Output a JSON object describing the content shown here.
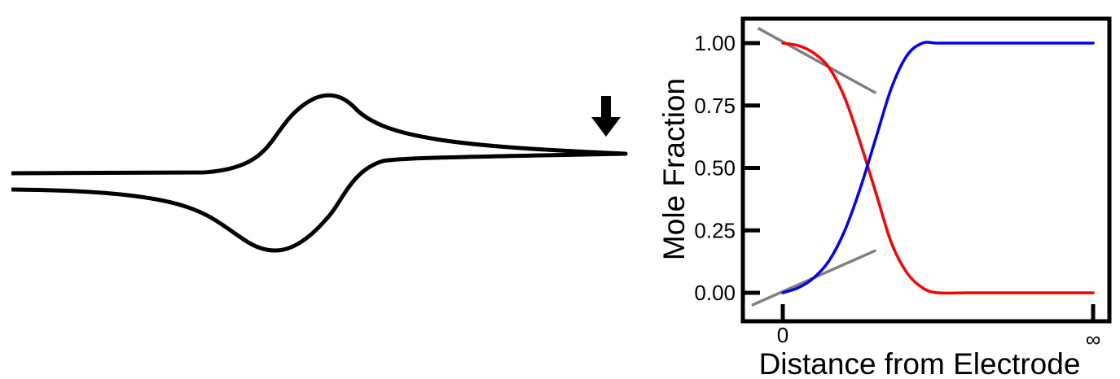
{
  "chart_data": [
    {
      "type": "line",
      "title": "",
      "description_role": "cyclic-voltammogram",
      "series": [
        {
          "values_shape": "hysteresis loop with forward peak and reverse trough",
          "color": "#000000"
        }
      ],
      "marker": {
        "icon": "down-arrow-icon",
        "color": "#000000"
      }
    },
    {
      "type": "line",
      "title": "",
      "xlabel": "Distance from Electrode",
      "ylabel": "Mole Fraction",
      "ylim": [
        -0.12,
        1.1
      ],
      "y_ticks": [
        "0.00",
        "0.25",
        "0.50",
        "0.75",
        "1.00"
      ],
      "x_ticks": [
        "0",
        "∞"
      ],
      "grid": false,
      "legend": "none",
      "series": [
        {
          "color": "#ff0000",
          "x": [
            0,
            0.05,
            0.1,
            0.15,
            0.2,
            0.25,
            0.3,
            0.35,
            0.4,
            0.45,
            0.5,
            0.6,
            0.8,
            1.0
          ],
          "values": [
            1.0,
            0.99,
            0.96,
            0.9,
            0.78,
            0.6,
            0.4,
            0.2,
            0.08,
            0.02,
            0.0,
            0.0,
            0.0,
            0.0
          ]
        },
        {
          "color": "#0000ff",
          "x": [
            0,
            0.05,
            0.1,
            0.15,
            0.2,
            0.25,
            0.3,
            0.35,
            0.4,
            0.45,
            0.5,
            0.6,
            0.8,
            1.0
          ],
          "values": [
            0.0,
            0.02,
            0.06,
            0.13,
            0.25,
            0.42,
            0.62,
            0.82,
            0.95,
            1.0,
            1.0,
            1.0,
            1.0,
            1.0
          ]
        }
      ],
      "tangent_lines": [
        {
          "color": "#808080",
          "x": [
            -0.08,
            0.3
          ],
          "values": [
            1.06,
            0.8
          ]
        },
        {
          "color": "#808080",
          "x": [
            -0.1,
            0.3
          ],
          "values": [
            -0.05,
            0.17
          ]
        }
      ]
    }
  ]
}
